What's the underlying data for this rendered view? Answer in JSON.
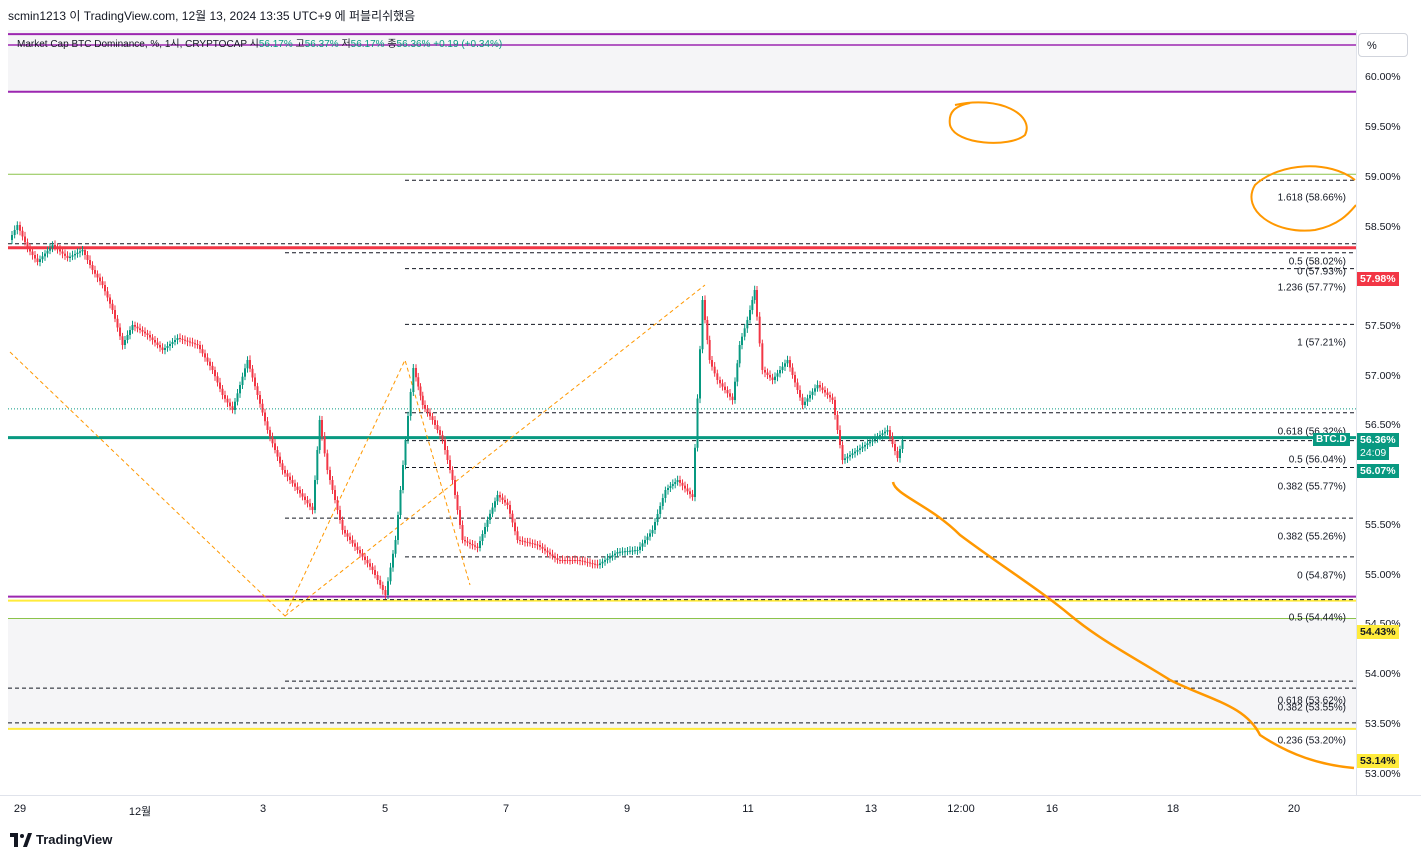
{
  "header": {
    "published": "scmin1213 이 TradingView.com, 12월 13, 2024 13:35 UTC+9 에 퍼블리쉬했음"
  },
  "legend": {
    "title": "Market Cap BTC Dominance, %, 1시, CRYPTOCAP",
    "o_label": "시",
    "o": "56.17%",
    "h_label": "고",
    "h": "56.37%",
    "l_label": "저",
    "l": "56.17%",
    "c_label": "종",
    "c": "56.36%",
    "change": "+0.19 (+0.34%)"
  },
  "axis": {
    "unit": "%",
    "ticks": [
      "60.00%",
      "59.50%",
      "59.00%",
      "58.50%",
      "57.50%",
      "57.00%",
      "56.50%",
      "55.50%",
      "55.00%",
      "54.50%",
      "54.00%",
      "53.50%",
      "53.00%"
    ],
    "badges": {
      "red_line": "57.98%",
      "symbol": "BTC.D",
      "price": "56.36%",
      "countdown": "24:09",
      "teal_line": "56.07%",
      "yellow_top": "54.43%",
      "yellow_bottom": "53.14%"
    }
  },
  "x_axis": [
    "29",
    "12월",
    "3",
    "5",
    "7",
    "9",
    "11",
    "13",
    "12:00",
    "16",
    "18",
    "20"
  ],
  "fib_labels": [
    "1.618 (58.66%)",
    "0.5 (58.02%)",
    "0 (57.93%)",
    "1.236 (57.77%)",
    "1 (57.21%)",
    "0.618 (56.32%)",
    "0.5 (56.04%)",
    "0.382 (55.77%)",
    "0.382 (55.26%)",
    "0 (54.87%)",
    "0.5 (54.44%)",
    "0.618 (53.62%)",
    "0.382 (53.55%)",
    "0.236 (53.20%)"
  ],
  "colors": {
    "up": "#089981",
    "down": "#f23645",
    "purple": "#9c27b0",
    "yellow": "#ffeb3b",
    "orange": "#ff9800",
    "red_line": "#f23645"
  },
  "footer": {
    "brand": "TradingView"
  }
}
